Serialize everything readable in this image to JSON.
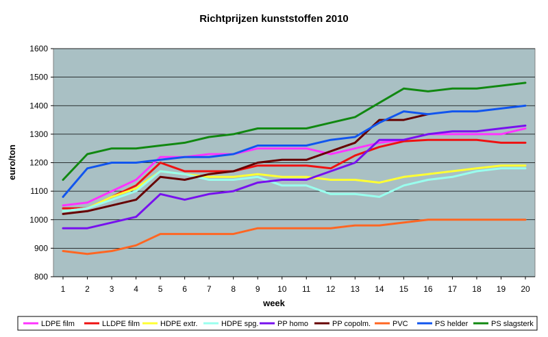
{
  "chart_data": {
    "type": "line",
    "title": "Richtprijzen kunststoffen 2010",
    "xlabel": "week",
    "ylabel": "euro/ton",
    "x": [
      1,
      2,
      3,
      4,
      5,
      6,
      7,
      8,
      9,
      10,
      11,
      12,
      13,
      14,
      15,
      16,
      17,
      18,
      19,
      20
    ],
    "xlim": [
      1,
      20
    ],
    "ylim": [
      800,
      1600
    ],
    "yticks": [
      800,
      900,
      1000,
      1100,
      1200,
      1300,
      1400,
      1500,
      1600
    ],
    "grid": true,
    "plot_background": "#a9c0c4",
    "legend_position": "bottom",
    "series": [
      {
        "name": "LDPE film",
        "color": "#ff33ff",
        "values": [
          1050,
          1060,
          1100,
          1140,
          1220,
          1220,
          1230,
          1230,
          1250,
          1250,
          1250,
          1230,
          1250,
          1270,
          1280,
          1300,
          1300,
          1300,
          1300,
          1320
        ]
      },
      {
        "name": "LLDPE film",
        "color": "#ee1111",
        "values": [
          1040,
          1040,
          1080,
          1120,
          1200,
          1170,
          1170,
          1170,
          1190,
          1190,
          1190,
          1180,
          1225,
          1255,
          1275,
          1280,
          1280,
          1280,
          1270,
          1270
        ]
      },
      {
        "name": "HDPE extr.",
        "color": "#ffff33",
        "values": [
          1030,
          1040,
          1080,
          1110,
          1170,
          1160,
          1150,
          1150,
          1160,
          1150,
          1150,
          1140,
          1140,
          1130,
          1150,
          1160,
          1170,
          1180,
          1190,
          1190
        ]
      },
      {
        "name": "HDPE spg.",
        "color": "#99ffee",
        "values": [
          1030,
          1040,
          1070,
          1100,
          1170,
          1160,
          1140,
          1140,
          1150,
          1120,
          1120,
          1090,
          1090,
          1080,
          1120,
          1140,
          1150,
          1170,
          1180,
          1180
        ]
      },
      {
        "name": "PP homo",
        "color": "#7711ee",
        "values": [
          970,
          970,
          990,
          1010,
          1090,
          1070,
          1090,
          1100,
          1130,
          1140,
          1140,
          1170,
          1200,
          1280,
          1280,
          1300,
          1310,
          1310,
          1320,
          1330
        ]
      },
      {
        "name": "PP copolm.",
        "color": "#660000",
        "values": [
          1020,
          1030,
          1050,
          1070,
          1150,
          1140,
          1160,
          1170,
          1200,
          1210,
          1210,
          1240,
          1270,
          1350,
          1350,
          1370,
          null,
          null,
          null,
          null
        ]
      },
      {
        "name": "PVC",
        "color": "#ff6622",
        "values": [
          890,
          880,
          890,
          910,
          950,
          950,
          950,
          950,
          970,
          970,
          970,
          970,
          980,
          980,
          990,
          1000,
          1000,
          1000,
          1000,
          1000
        ]
      },
      {
        "name": "PS helder",
        "color": "#1155ee",
        "values": [
          1080,
          1180,
          1200,
          1200,
          1210,
          1220,
          1220,
          1230,
          1260,
          1260,
          1260,
          1280,
          1290,
          1340,
          1380,
          1370,
          1380,
          1380,
          1390,
          1400
        ]
      },
      {
        "name": "PS slagsterk",
        "color": "#118811",
        "values": [
          1140,
          1230,
          1250,
          1250,
          1260,
          1270,
          1290,
          1300,
          1320,
          1320,
          1320,
          1340,
          1360,
          1410,
          1460,
          1450,
          1460,
          1460,
          1470,
          1480
        ]
      }
    ]
  }
}
